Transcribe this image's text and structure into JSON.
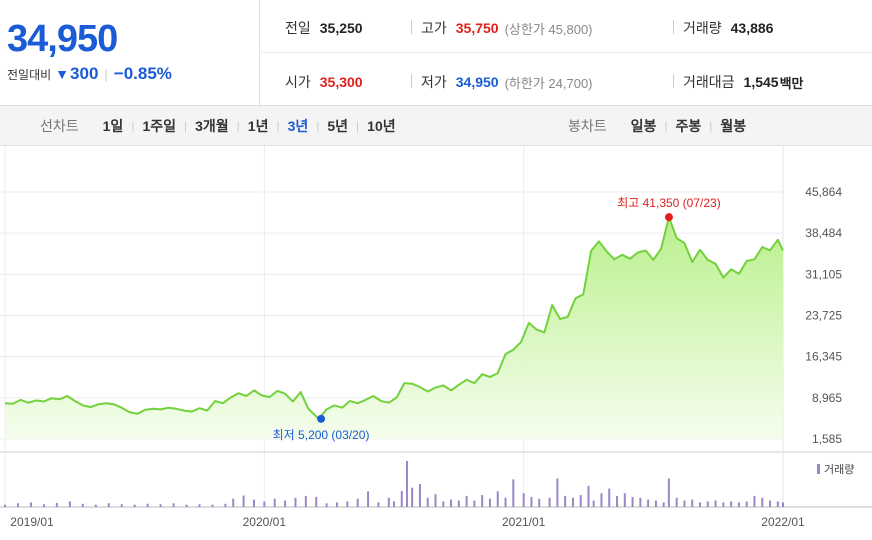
{
  "quote": {
    "price": "34,950",
    "vs_label": "전일대비",
    "change": "300",
    "change_pct": "−0.85%"
  },
  "summary": {
    "prev_label": "전일",
    "prev": "35,250",
    "high_label": "고가",
    "high": "35,750",
    "upper_limit": "(상한가 45,800)",
    "volume_label": "거래량",
    "volume": "43,886",
    "open_label": "시가",
    "open": "35,300",
    "low_label": "저가",
    "low": "34,950",
    "lower_limit": "(하한가 24,700)",
    "amount_label": "거래대금",
    "amount": "1,545",
    "amount_unit": "백만"
  },
  "periods": {
    "line_label": "선차트",
    "line_items": [
      "1일",
      "1주일",
      "3개월",
      "1년",
      "3년",
      "5년",
      "10년"
    ],
    "line_selected": "3년",
    "candle_label": "봉차트",
    "candle_items": [
      "일봉",
      "주봉",
      "월봉"
    ]
  },
  "colors": {
    "up": "#e0201c",
    "down": "#1a5bd6",
    "line": "#72d13c",
    "volume": "#9a86c9"
  },
  "chart_data": {
    "type": "area",
    "y_ticks": [
      "45,864",
      "38,484",
      "31,105",
      "23,725",
      "16,345",
      "8,965",
      "1,585"
    ],
    "y_tick_values": [
      45864,
      38484,
      31105,
      23725,
      16345,
      8965,
      1585
    ],
    "ylim": [
      1585,
      45864
    ],
    "x_ticks": [
      "2019/01",
      "2020/01",
      "2021/01",
      "2022/01"
    ],
    "x_range": [
      "2019/01",
      "2022/01"
    ],
    "grid": true,
    "max_label": "최고 41,350 (07/23)",
    "min_label": "최저 5,200 (03/20)",
    "max_point": {
      "date": "2021/07/23",
      "value": 41350
    },
    "min_point": {
      "date": "2020/03/20",
      "value": 5200
    },
    "series": [
      {
        "values": [
          [
            2019.0,
            8000
          ],
          [
            2019.03,
            7900
          ],
          [
            2019.06,
            8600
          ],
          [
            2019.09,
            8100
          ],
          [
            2019.12,
            8500
          ],
          [
            2019.15,
            8300
          ],
          [
            2019.18,
            8900
          ],
          [
            2019.21,
            8700
          ],
          [
            2019.24,
            9300
          ],
          [
            2019.27,
            8400
          ],
          [
            2019.3,
            7600
          ],
          [
            2019.33,
            7300
          ],
          [
            2019.36,
            7800
          ],
          [
            2019.39,
            8000
          ],
          [
            2019.42,
            7800
          ],
          [
            2019.45,
            7200
          ],
          [
            2019.48,
            6400
          ],
          [
            2019.51,
            6100
          ],
          [
            2019.54,
            6800
          ],
          [
            2019.57,
            7000
          ],
          [
            2019.6,
            6900
          ],
          [
            2019.63,
            7200
          ],
          [
            2019.66,
            7000
          ],
          [
            2019.69,
            6700
          ],
          [
            2019.72,
            6500
          ],
          [
            2019.75,
            7100
          ],
          [
            2019.78,
            6700
          ],
          [
            2019.81,
            8400
          ],
          [
            2019.84,
            8000
          ],
          [
            2019.87,
            9000
          ],
          [
            2019.9,
            9800
          ],
          [
            2019.93,
            9300
          ],
          [
            2019.96,
            10300
          ],
          [
            2019.99,
            9400
          ],
          [
            2020.02,
            9100
          ],
          [
            2020.05,
            10200
          ],
          [
            2020.08,
            9700
          ],
          [
            2020.11,
            8300
          ],
          [
            2020.14,
            10000
          ],
          [
            2020.17,
            7000
          ],
          [
            2020.21,
            5200
          ],
          [
            2020.24,
            6900
          ],
          [
            2020.27,
            7600
          ],
          [
            2020.3,
            7200
          ],
          [
            2020.33,
            8400
          ],
          [
            2020.36,
            8000
          ],
          [
            2020.39,
            8600
          ],
          [
            2020.42,
            9300
          ],
          [
            2020.45,
            8400
          ],
          [
            2020.48,
            8100
          ],
          [
            2020.51,
            9000
          ],
          [
            2020.54,
            11600
          ],
          [
            2020.57,
            11500
          ],
          [
            2020.6,
            10900
          ],
          [
            2020.63,
            10100
          ],
          [
            2020.66,
            10800
          ],
          [
            2020.69,
            11200
          ],
          [
            2020.72,
            10300
          ],
          [
            2020.75,
            11300
          ],
          [
            2020.78,
            12200
          ],
          [
            2020.81,
            11600
          ],
          [
            2020.84,
            13200
          ],
          [
            2020.87,
            12700
          ],
          [
            2020.9,
            13400
          ],
          [
            2020.93,
            16800
          ],
          [
            2020.96,
            17600
          ],
          [
            2020.99,
            19000
          ],
          [
            2021.02,
            22400
          ],
          [
            2021.05,
            21200
          ],
          [
            2021.08,
            20700
          ],
          [
            2021.11,
            25600
          ],
          [
            2021.14,
            23100
          ],
          [
            2021.17,
            23500
          ],
          [
            2021.2,
            26800
          ],
          [
            2021.23,
            27500
          ],
          [
            2021.26,
            35300
          ],
          [
            2021.29,
            37000
          ],
          [
            2021.32,
            35200
          ],
          [
            2021.35,
            33800
          ],
          [
            2021.38,
            34600
          ],
          [
            2021.41,
            33900
          ],
          [
            2021.44,
            35000
          ],
          [
            2021.47,
            35400
          ],
          [
            2021.5,
            33700
          ],
          [
            2021.53,
            35700
          ],
          [
            2021.56,
            41350
          ],
          [
            2021.59,
            37600
          ],
          [
            2021.62,
            36700
          ],
          [
            2021.65,
            33300
          ],
          [
            2021.68,
            35500
          ],
          [
            2021.71,
            33700
          ],
          [
            2021.74,
            33000
          ],
          [
            2021.77,
            30500
          ],
          [
            2021.8,
            32000
          ],
          [
            2021.83,
            31200
          ],
          [
            2021.86,
            33500
          ],
          [
            2021.89,
            33800
          ],
          [
            2021.92,
            36000
          ],
          [
            2021.95,
            35400
          ],
          [
            2021.98,
            37300
          ],
          [
            2022.0,
            35400
          ]
        ]
      }
    ],
    "volume_label": "거래량",
    "volume": [
      [
        2019.0,
        0.05
      ],
      [
        2019.05,
        0.08
      ],
      [
        2019.1,
        0.1
      ],
      [
        2019.15,
        0.06
      ],
      [
        2019.2,
        0.09
      ],
      [
        2019.25,
        0.12
      ],
      [
        2019.3,
        0.07
      ],
      [
        2019.35,
        0.05
      ],
      [
        2019.4,
        0.08
      ],
      [
        2019.45,
        0.06
      ],
      [
        2019.5,
        0.05
      ],
      [
        2019.55,
        0.07
      ],
      [
        2019.6,
        0.06
      ],
      [
        2019.65,
        0.08
      ],
      [
        2019.7,
        0.05
      ],
      [
        2019.75,
        0.06
      ],
      [
        2019.8,
        0.05
      ],
      [
        2019.85,
        0.07
      ],
      [
        2019.88,
        0.18
      ],
      [
        2019.92,
        0.25
      ],
      [
        2019.96,
        0.16
      ],
      [
        2020.0,
        0.12
      ],
      [
        2020.04,
        0.18
      ],
      [
        2020.08,
        0.14
      ],
      [
        2020.12,
        0.2
      ],
      [
        2020.16,
        0.24
      ],
      [
        2020.2,
        0.22
      ],
      [
        2020.24,
        0.08
      ],
      [
        2020.28,
        0.1
      ],
      [
        2020.32,
        0.12
      ],
      [
        2020.36,
        0.18
      ],
      [
        2020.4,
        0.34
      ],
      [
        2020.44,
        0.1
      ],
      [
        2020.48,
        0.2
      ],
      [
        2020.5,
        0.12
      ],
      [
        2020.53,
        0.35
      ],
      [
        2020.55,
        1.0
      ],
      [
        2020.57,
        0.42
      ],
      [
        2020.6,
        0.5
      ],
      [
        2020.63,
        0.2
      ],
      [
        2020.66,
        0.28
      ],
      [
        2020.69,
        0.12
      ],
      [
        2020.72,
        0.16
      ],
      [
        2020.75,
        0.14
      ],
      [
        2020.78,
        0.24
      ],
      [
        2020.81,
        0.14
      ],
      [
        2020.84,
        0.26
      ],
      [
        2020.87,
        0.18
      ],
      [
        2020.9,
        0.34
      ],
      [
        2020.93,
        0.2
      ],
      [
        2020.96,
        0.6
      ],
      [
        2021.0,
        0.3
      ],
      [
        2021.03,
        0.22
      ],
      [
        2021.06,
        0.18
      ],
      [
        2021.1,
        0.2
      ],
      [
        2021.13,
        0.62
      ],
      [
        2021.16,
        0.24
      ],
      [
        2021.19,
        0.2
      ],
      [
        2021.22,
        0.26
      ],
      [
        2021.25,
        0.46
      ],
      [
        2021.27,
        0.14
      ],
      [
        2021.3,
        0.3
      ],
      [
        2021.33,
        0.4
      ],
      [
        2021.36,
        0.24
      ],
      [
        2021.39,
        0.3
      ],
      [
        2021.42,
        0.22
      ],
      [
        2021.45,
        0.2
      ],
      [
        2021.48,
        0.16
      ],
      [
        2021.51,
        0.14
      ],
      [
        2021.54,
        0.1
      ],
      [
        2021.56,
        0.62
      ],
      [
        2021.59,
        0.2
      ],
      [
        2021.62,
        0.14
      ],
      [
        2021.65,
        0.16
      ],
      [
        2021.68,
        0.1
      ],
      [
        2021.71,
        0.12
      ],
      [
        2021.74,
        0.14
      ],
      [
        2021.77,
        0.1
      ],
      [
        2021.8,
        0.12
      ],
      [
        2021.83,
        0.1
      ],
      [
        2021.86,
        0.12
      ],
      [
        2021.89,
        0.24
      ],
      [
        2021.92,
        0.2
      ],
      [
        2021.95,
        0.14
      ],
      [
        2021.98,
        0.12
      ],
      [
        2022.0,
        0.1
      ]
    ]
  }
}
